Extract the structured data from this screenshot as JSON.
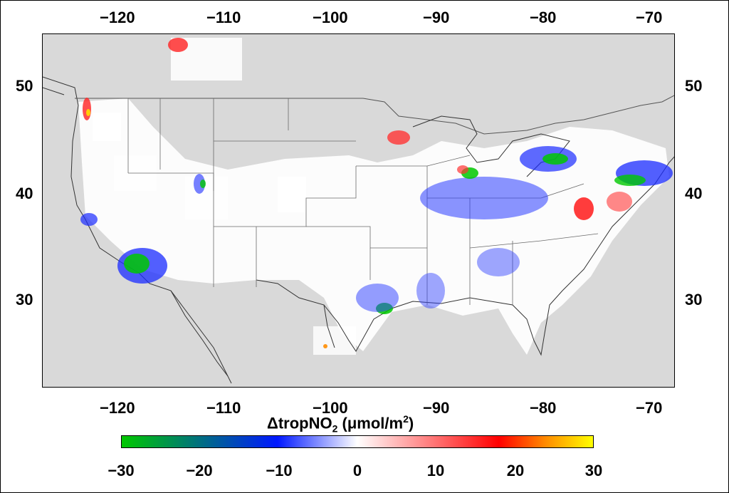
{
  "map": {
    "x_ticks": [
      "−120",
      "−110",
      "−100",
      "−90",
      "−80",
      "−70"
    ],
    "y_ticks": [
      "50",
      "40",
      "30"
    ],
    "colors": {
      "land_background": "#d9d9d9",
      "negative": "#0018ff",
      "strong_negative": "#00c800",
      "positive": "#ff0000",
      "strong_positive": "#ffff00"
    }
  },
  "colorbar": {
    "title_prefix": "ΔtropNO",
    "title_sub": "2",
    "title_unit": " (μmol/m",
    "title_sup": "2",
    "title_close": ")",
    "labels": [
      "−30",
      "−20",
      "−10",
      "0",
      "10",
      "20",
      "30"
    ]
  }
}
